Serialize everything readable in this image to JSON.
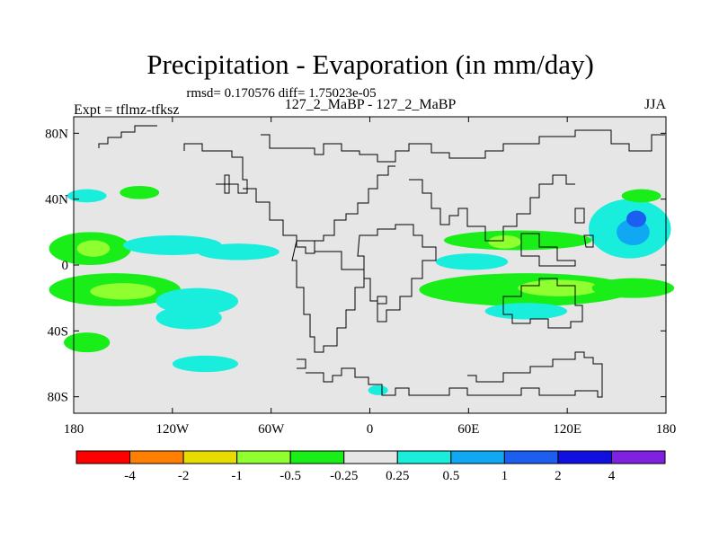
{
  "chart_data": {
    "type": "filled_contour_map",
    "title": "Precipitation - Evaporation (in mm/day)",
    "stats": "rmsd= 0.170576 diff= 1.75023e-05",
    "subtitle_center": "127_2_MaBP - 127_2_MaBP",
    "subtitle_left": "Expt = tflmz-tfksz",
    "subtitle_right": "JJA",
    "x_ticks": [
      "180",
      "120W",
      "60W",
      "0",
      "60E",
      "120E",
      "180"
    ],
    "x_tick_values": [
      -180,
      -120,
      -60,
      0,
      60,
      120,
      180
    ],
    "y_ticks": [
      "80N",
      "40N",
      "0",
      "40S",
      "80S"
    ],
    "y_tick_values": [
      80,
      40,
      0,
      -40,
      -80
    ],
    "xlim": [
      -180,
      180
    ],
    "ylim": [
      -90,
      90
    ],
    "colorbar": {
      "colors": [
        "#ff0000",
        "#ff8000",
        "#e6dc00",
        "#90ff30",
        "#19ee19",
        "#e6e6e6",
        "#19eedd",
        "#11a8f3",
        "#1b5ef0",
        "#1010e0",
        "#8020e0"
      ],
      "labels": [
        "-4",
        "-2",
        "-1",
        "-0.5",
        "-0.25",
        "0.25",
        "0.5",
        "1",
        "2",
        "4"
      ]
    },
    "background_color": "#e6e6e6",
    "anomaly_regions": [
      {
        "name": "W Pacific north band",
        "lon": -170,
        "lat": 10,
        "w": 25,
        "h": 10,
        "color": "#19ee19"
      },
      {
        "name": "W Pacific north inner",
        "lon": -168,
        "lat": 10,
        "w": 10,
        "h": 5,
        "color": "#90ff30"
      },
      {
        "name": "Central Pacific north",
        "lon": -120,
        "lat": 12,
        "w": 30,
        "h": 6,
        "color": "#19eedd"
      },
      {
        "name": "ITCZ Pacific",
        "lon": -80,
        "lat": 8,
        "w": 25,
        "h": 5,
        "color": "#19eedd"
      },
      {
        "name": "S Pacific west band",
        "lon": -155,
        "lat": -15,
        "w": 40,
        "h": 10,
        "color": "#19ee19"
      },
      {
        "name": "S Pacific west inner",
        "lon": -150,
        "lat": -16,
        "w": 20,
        "h": 5,
        "color": "#90ff30"
      },
      {
        "name": "S Pacific central",
        "lon": -105,
        "lat": -22,
        "w": 25,
        "h": 8,
        "color": "#19eedd"
      },
      {
        "name": "S Pacific south",
        "lon": -110,
        "lat": -32,
        "w": 20,
        "h": 7,
        "color": "#19eedd"
      },
      {
        "name": "S Pacific far south",
        "lon": -172,
        "lat": -47,
        "w": 14,
        "h": 6,
        "color": "#19ee19"
      },
      {
        "name": "N Pacific west",
        "lon": -172,
        "lat": 42,
        "w": 12,
        "h": 4,
        "color": "#19eedd"
      },
      {
        "name": "N Pacific east",
        "lon": -140,
        "lat": 44,
        "w": 12,
        "h": 4,
        "color": "#19ee19"
      },
      {
        "name": "Bay of Bengal band",
        "lon": 90,
        "lat": 15,
        "w": 45,
        "h": 6,
        "color": "#19ee19"
      },
      {
        "name": "Bay of Bengal inner",
        "lon": 82,
        "lat": 14,
        "w": 10,
        "h": 4,
        "color": "#90ff30"
      },
      {
        "name": "Indian Ocean equatorial",
        "lon": 62,
        "lat": 2,
        "w": 22,
        "h": 5,
        "color": "#19eedd"
      },
      {
        "name": "Indian Ocean south",
        "lon": 95,
        "lat": -15,
        "w": 65,
        "h": 10,
        "color": "#19ee19"
      },
      {
        "name": "Indian Ocean south inner",
        "lon": 115,
        "lat": -14,
        "w": 25,
        "h": 5,
        "color": "#90ff30"
      },
      {
        "name": "S Indian far",
        "lon": 95,
        "lat": -28,
        "w": 25,
        "h": 5,
        "color": "#19eedd"
      },
      {
        "name": "NW Pacific blob",
        "lon": 158,
        "lat": 22,
        "w": 25,
        "h": 18,
        "color": "#19eedd"
      },
      {
        "name": "NW Pacific core",
        "lon": 160,
        "lat": 20,
        "w": 10,
        "h": 8,
        "color": "#11a8f3"
      },
      {
        "name": "NW Pacific deep",
        "lon": 162,
        "lat": 28,
        "w": 6,
        "h": 5,
        "color": "#1b5ef0"
      },
      {
        "name": "NW Pacific north",
        "lon": 165,
        "lat": 42,
        "w": 12,
        "h": 4,
        "color": "#19ee19"
      },
      {
        "name": "W Pacific south",
        "lon": 160,
        "lat": -14,
        "w": 25,
        "h": 6,
        "color": "#19ee19"
      },
      {
        "name": "Southern Ocean",
        "lon": -100,
        "lat": -60,
        "w": 20,
        "h": 5,
        "color": "#19eedd"
      },
      {
        "name": "Antarctic coast",
        "lon": 5,
        "lat": -76,
        "w": 6,
        "h": 3,
        "color": "#19eedd"
      }
    ]
  }
}
